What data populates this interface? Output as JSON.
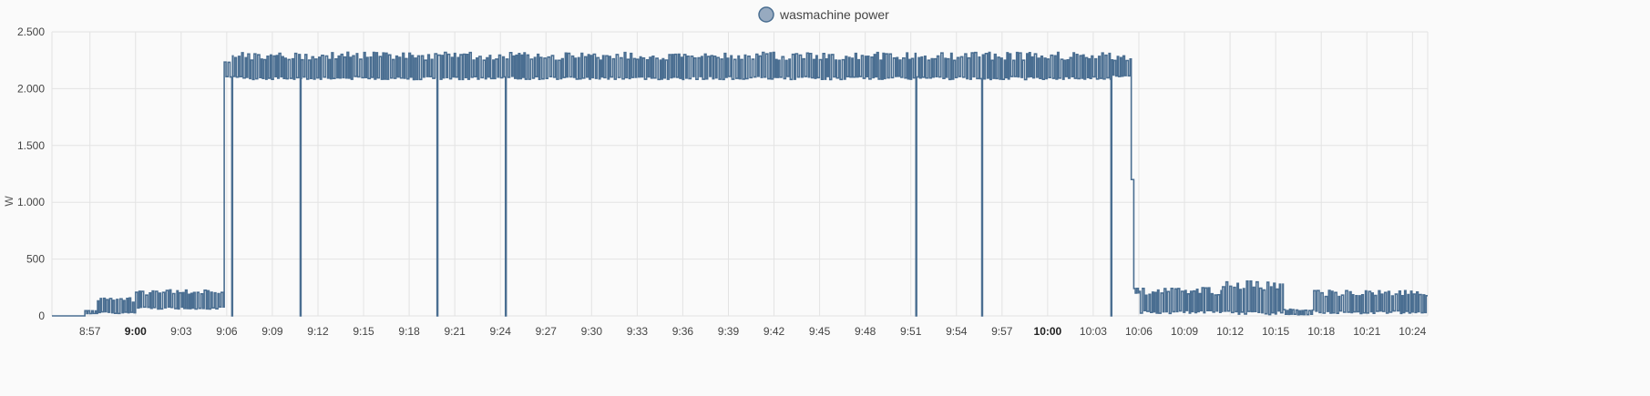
{
  "chart_data": {
    "type": "line",
    "step": true,
    "legend": {
      "placement": "top-center"
    },
    "series": [
      {
        "name": "wasmachine power",
        "color": "#4a6e91",
        "fill": "#97aac0"
      }
    ],
    "ylabel": "W",
    "ylim": [
      0,
      2500
    ],
    "yticks": [
      {
        "value": 0,
        "label": "0"
      },
      {
        "value": 500,
        "label": "500"
      },
      {
        "value": 1000,
        "label": "1.000"
      },
      {
        "value": 1500,
        "label": "1.500"
      },
      {
        "value": 2000,
        "label": "2.000"
      },
      {
        "value": 2500,
        "label": "2.500"
      }
    ],
    "xlim": [
      "08:54:30",
      "10:25:00"
    ],
    "xticks": [
      {
        "time": "08:57",
        "label": "8:57",
        "bold": false
      },
      {
        "time": "09:00",
        "label": "9:00",
        "bold": true
      },
      {
        "time": "09:03",
        "label": "9:03",
        "bold": false
      },
      {
        "time": "09:06",
        "label": "9:06",
        "bold": false
      },
      {
        "time": "09:09",
        "label": "9:09",
        "bold": false
      },
      {
        "time": "09:12",
        "label": "9:12",
        "bold": false
      },
      {
        "time": "09:15",
        "label": "9:15",
        "bold": false
      },
      {
        "time": "09:18",
        "label": "9:18",
        "bold": false
      },
      {
        "time": "09:21",
        "label": "9:21",
        "bold": false
      },
      {
        "time": "09:24",
        "label": "9:24",
        "bold": false
      },
      {
        "time": "09:27",
        "label": "9:27",
        "bold": false
      },
      {
        "time": "09:30",
        "label": "9:30",
        "bold": false
      },
      {
        "time": "09:33",
        "label": "9:33",
        "bold": false
      },
      {
        "time": "09:36",
        "label": "9:36",
        "bold": false
      },
      {
        "time": "09:39",
        "label": "9:39",
        "bold": false
      },
      {
        "time": "09:42",
        "label": "9:42",
        "bold": false
      },
      {
        "time": "09:45",
        "label": "9:45",
        "bold": false
      },
      {
        "time": "09:48",
        "label": "9:48",
        "bold": false
      },
      {
        "time": "09:51",
        "label": "9:51",
        "bold": false
      },
      {
        "time": "09:54",
        "label": "9:54",
        "bold": false
      },
      {
        "time": "09:57",
        "label": "9:57",
        "bold": false
      },
      {
        "time": "10:00",
        "label": "10:00",
        "bold": true
      },
      {
        "time": "10:03",
        "label": "10:03",
        "bold": false
      },
      {
        "time": "10:06",
        "label": "10:06",
        "bold": false
      },
      {
        "time": "10:09",
        "label": "10:09",
        "bold": false
      },
      {
        "time": "10:12",
        "label": "10:12",
        "bold": false
      },
      {
        "time": "10:15",
        "label": "10:15",
        "bold": false
      },
      {
        "time": "10:18",
        "label": "10:18",
        "bold": false
      },
      {
        "time": "10:21",
        "label": "10:21",
        "bold": false
      },
      {
        "time": "10:24",
        "label": "10:24",
        "bold": false
      }
    ],
    "grid": true,
    "phases": [
      {
        "from": "08:54:30",
        "to": "08:56:40",
        "low": 0,
        "high": 0
      },
      {
        "from": "08:56:40",
        "to": "08:57:30",
        "low": 20,
        "high": 50
      },
      {
        "from": "08:57:30",
        "to": "09:00:00",
        "low": 20,
        "high": 160
      },
      {
        "from": "09:00:00",
        "to": "09:05:50",
        "low": 60,
        "high": 230
      },
      {
        "from": "09:05:50",
        "to": "09:06:20",
        "low": 2090,
        "high": 2260
      },
      {
        "from": "09:06:20",
        "to": "10:04:10",
        "low": 2080,
        "high": 2320
      },
      {
        "from": "10:04:10",
        "to": "10:05:30",
        "low": 2100,
        "high": 2310
      },
      {
        "from": "10:05:30",
        "to": "10:05:40",
        "low": 1200,
        "high": 1200
      },
      {
        "from": "10:05:40",
        "to": "10:06:00",
        "low": 200,
        "high": 250
      },
      {
        "from": "10:06:00",
        "to": "10:11:30",
        "low": 20,
        "high": 250
      },
      {
        "from": "10:11:30",
        "to": "10:15:30",
        "low": 10,
        "high": 310
      },
      {
        "from": "10:15:30",
        "to": "10:17:30",
        "low": 10,
        "high": 60
      },
      {
        "from": "10:17:30",
        "to": "10:25:00",
        "low": 20,
        "high": 230
      }
    ],
    "dropouts": [
      "09:06:20",
      "09:10:50",
      "09:19:50",
      "09:24:20",
      "09:51:20",
      "09:55:40",
      "10:04:10"
    ]
  }
}
